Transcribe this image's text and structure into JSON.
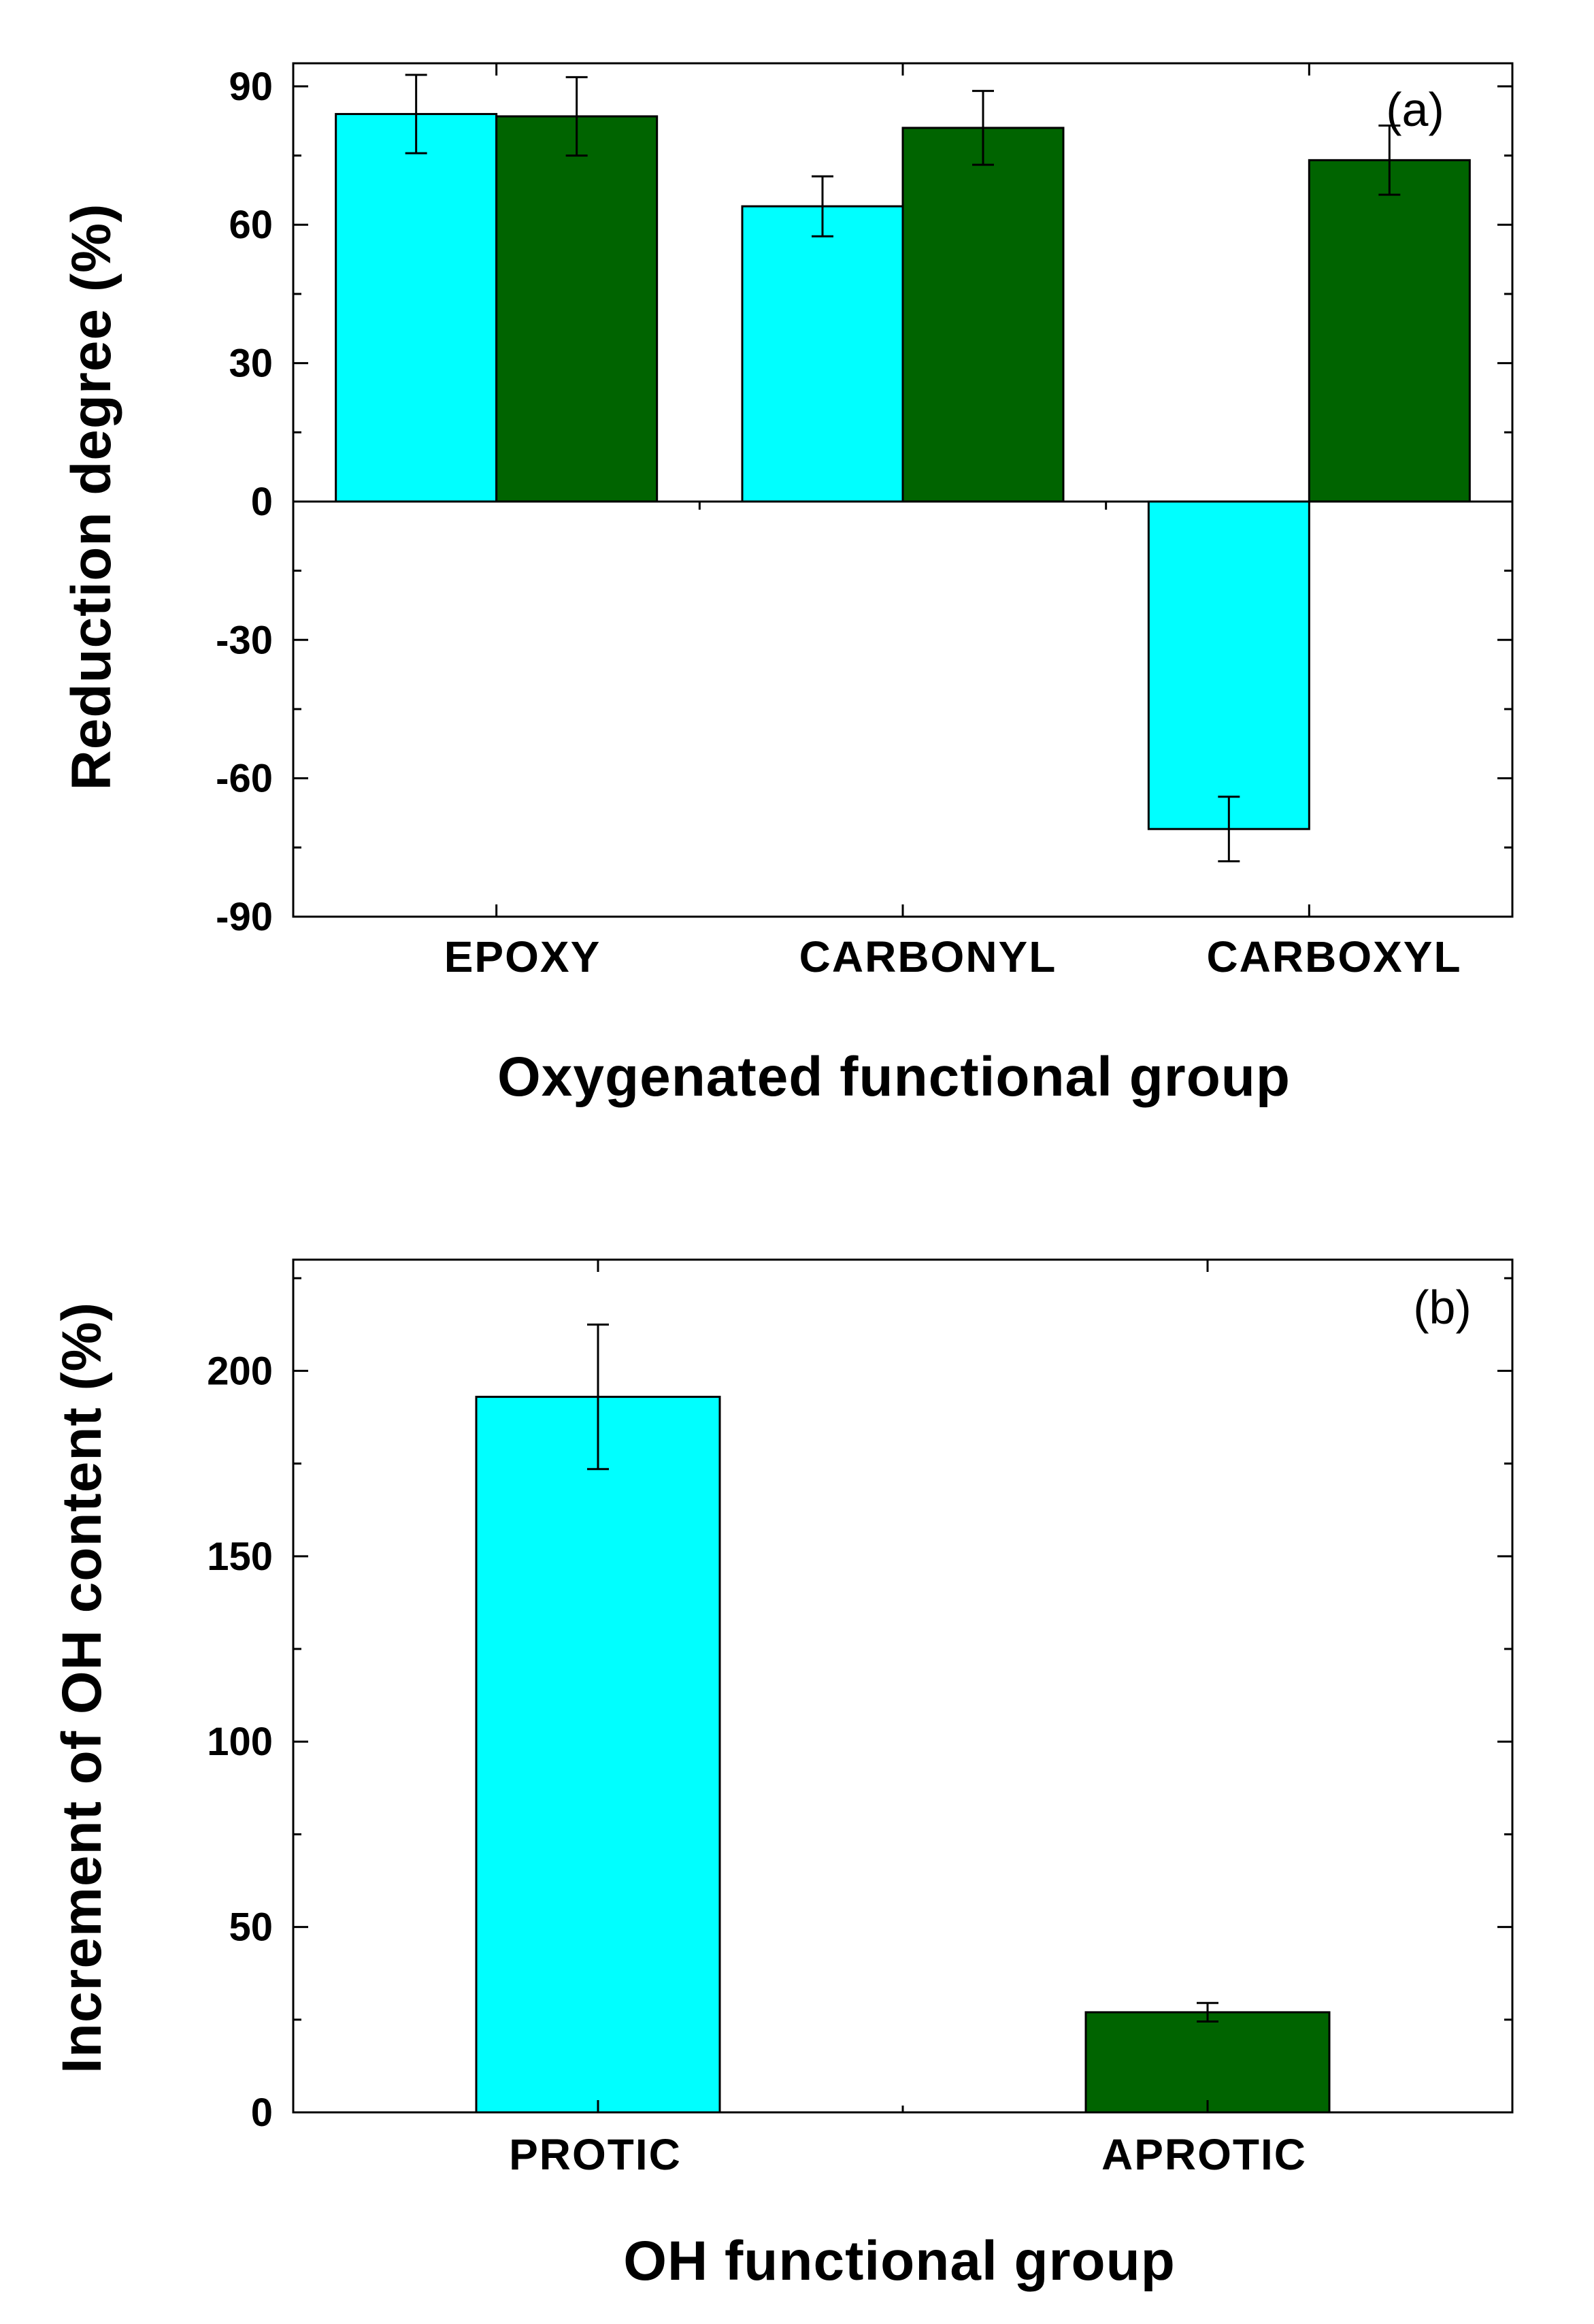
{
  "colors": {
    "protic": "#00ffff",
    "aprotic": "#006400",
    "axis": "#000000"
  },
  "chart_data": [
    {
      "type": "bar",
      "panel_label": "(a)",
      "categories": [
        "EPOXY",
        "CARBONYL",
        "CARBOXYL"
      ],
      "series": [
        {
          "name": "cyan",
          "color": "#00ffff",
          "values": [
            84,
            64,
            -71
          ],
          "errors": [
            8.5,
            6.5,
            7
          ]
        },
        {
          "name": "green",
          "color": "#006400",
          "values": [
            83.5,
            81,
            74
          ],
          "errors": [
            8.5,
            8,
            7.5
          ]
        }
      ],
      "xlabel": "Oxygenated functional group",
      "ylabel": "Reduction degree (%)",
      "ylim": [
        -90,
        95
      ],
      "yticks": [
        -90,
        -60,
        -30,
        0,
        30,
        60,
        90
      ],
      "ytick_labels": [
        "-90",
        "-60",
        "-30",
        "0",
        "30",
        "60",
        "90"
      ],
      "zero_line": true
    },
    {
      "type": "bar",
      "panel_label": "(b)",
      "categories": [
        "PROTIC",
        "APROTIC"
      ],
      "series": [
        {
          "name": "bars",
          "values": [
            193,
            27
          ],
          "errors": [
            19.5,
            2.5
          ],
          "colors": [
            "#00ffff",
            "#006400"
          ]
        }
      ],
      "xlabel": "OH functional group",
      "ylabel": "Increment of OH content (%)",
      "ylim": [
        0,
        230
      ],
      "yticks": [
        0,
        50,
        100,
        150,
        200
      ],
      "ytick_labels": [
        "0",
        "50",
        "100",
        "150",
        "200"
      ]
    }
  ]
}
